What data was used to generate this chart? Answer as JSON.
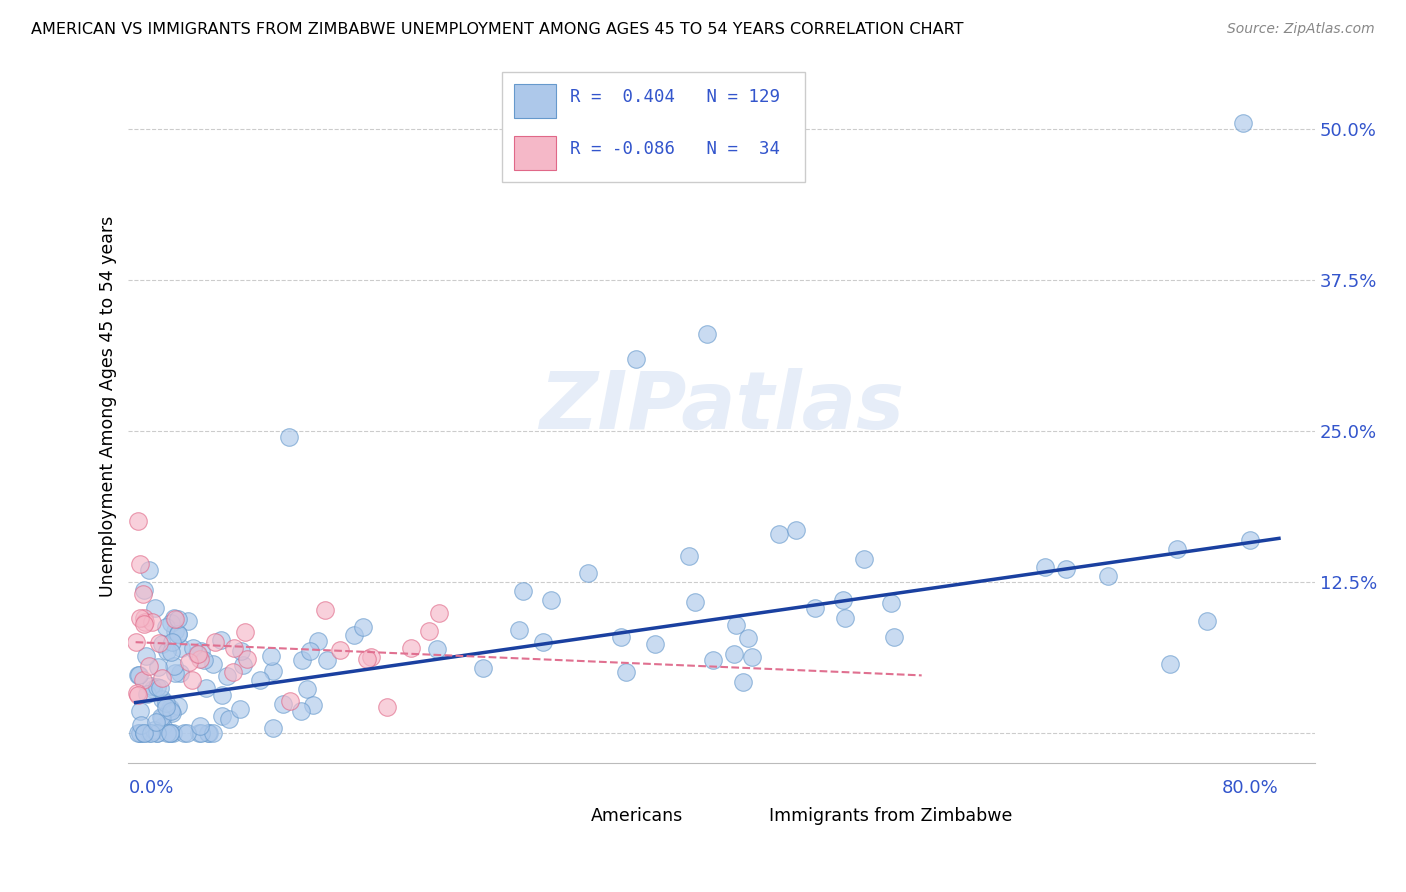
{
  "title": "AMERICAN VS IMMIGRANTS FROM ZIMBABWE UNEMPLOYMENT AMONG AGES 45 TO 54 YEARS CORRELATION CHART",
  "source": "Source: ZipAtlas.com",
  "ylabel": "Unemployment Among Ages 45 to 54 years",
  "watermark": "ZIPatlas",
  "american_color": "#adc8ea",
  "american_edge": "#6699cc",
  "zimbabwe_color": "#f5b8c8",
  "zimbabwe_edge": "#e06888",
  "trendline_american_color": "#1a40a0",
  "trendline_zimbabwe_color": "#e07090",
  "background_color": "#ffffff",
  "grid_color": "#cccccc",
  "legend_text_color": "#3355cc",
  "ytick_color": "#3355cc",
  "xlabel_color": "#3355cc"
}
